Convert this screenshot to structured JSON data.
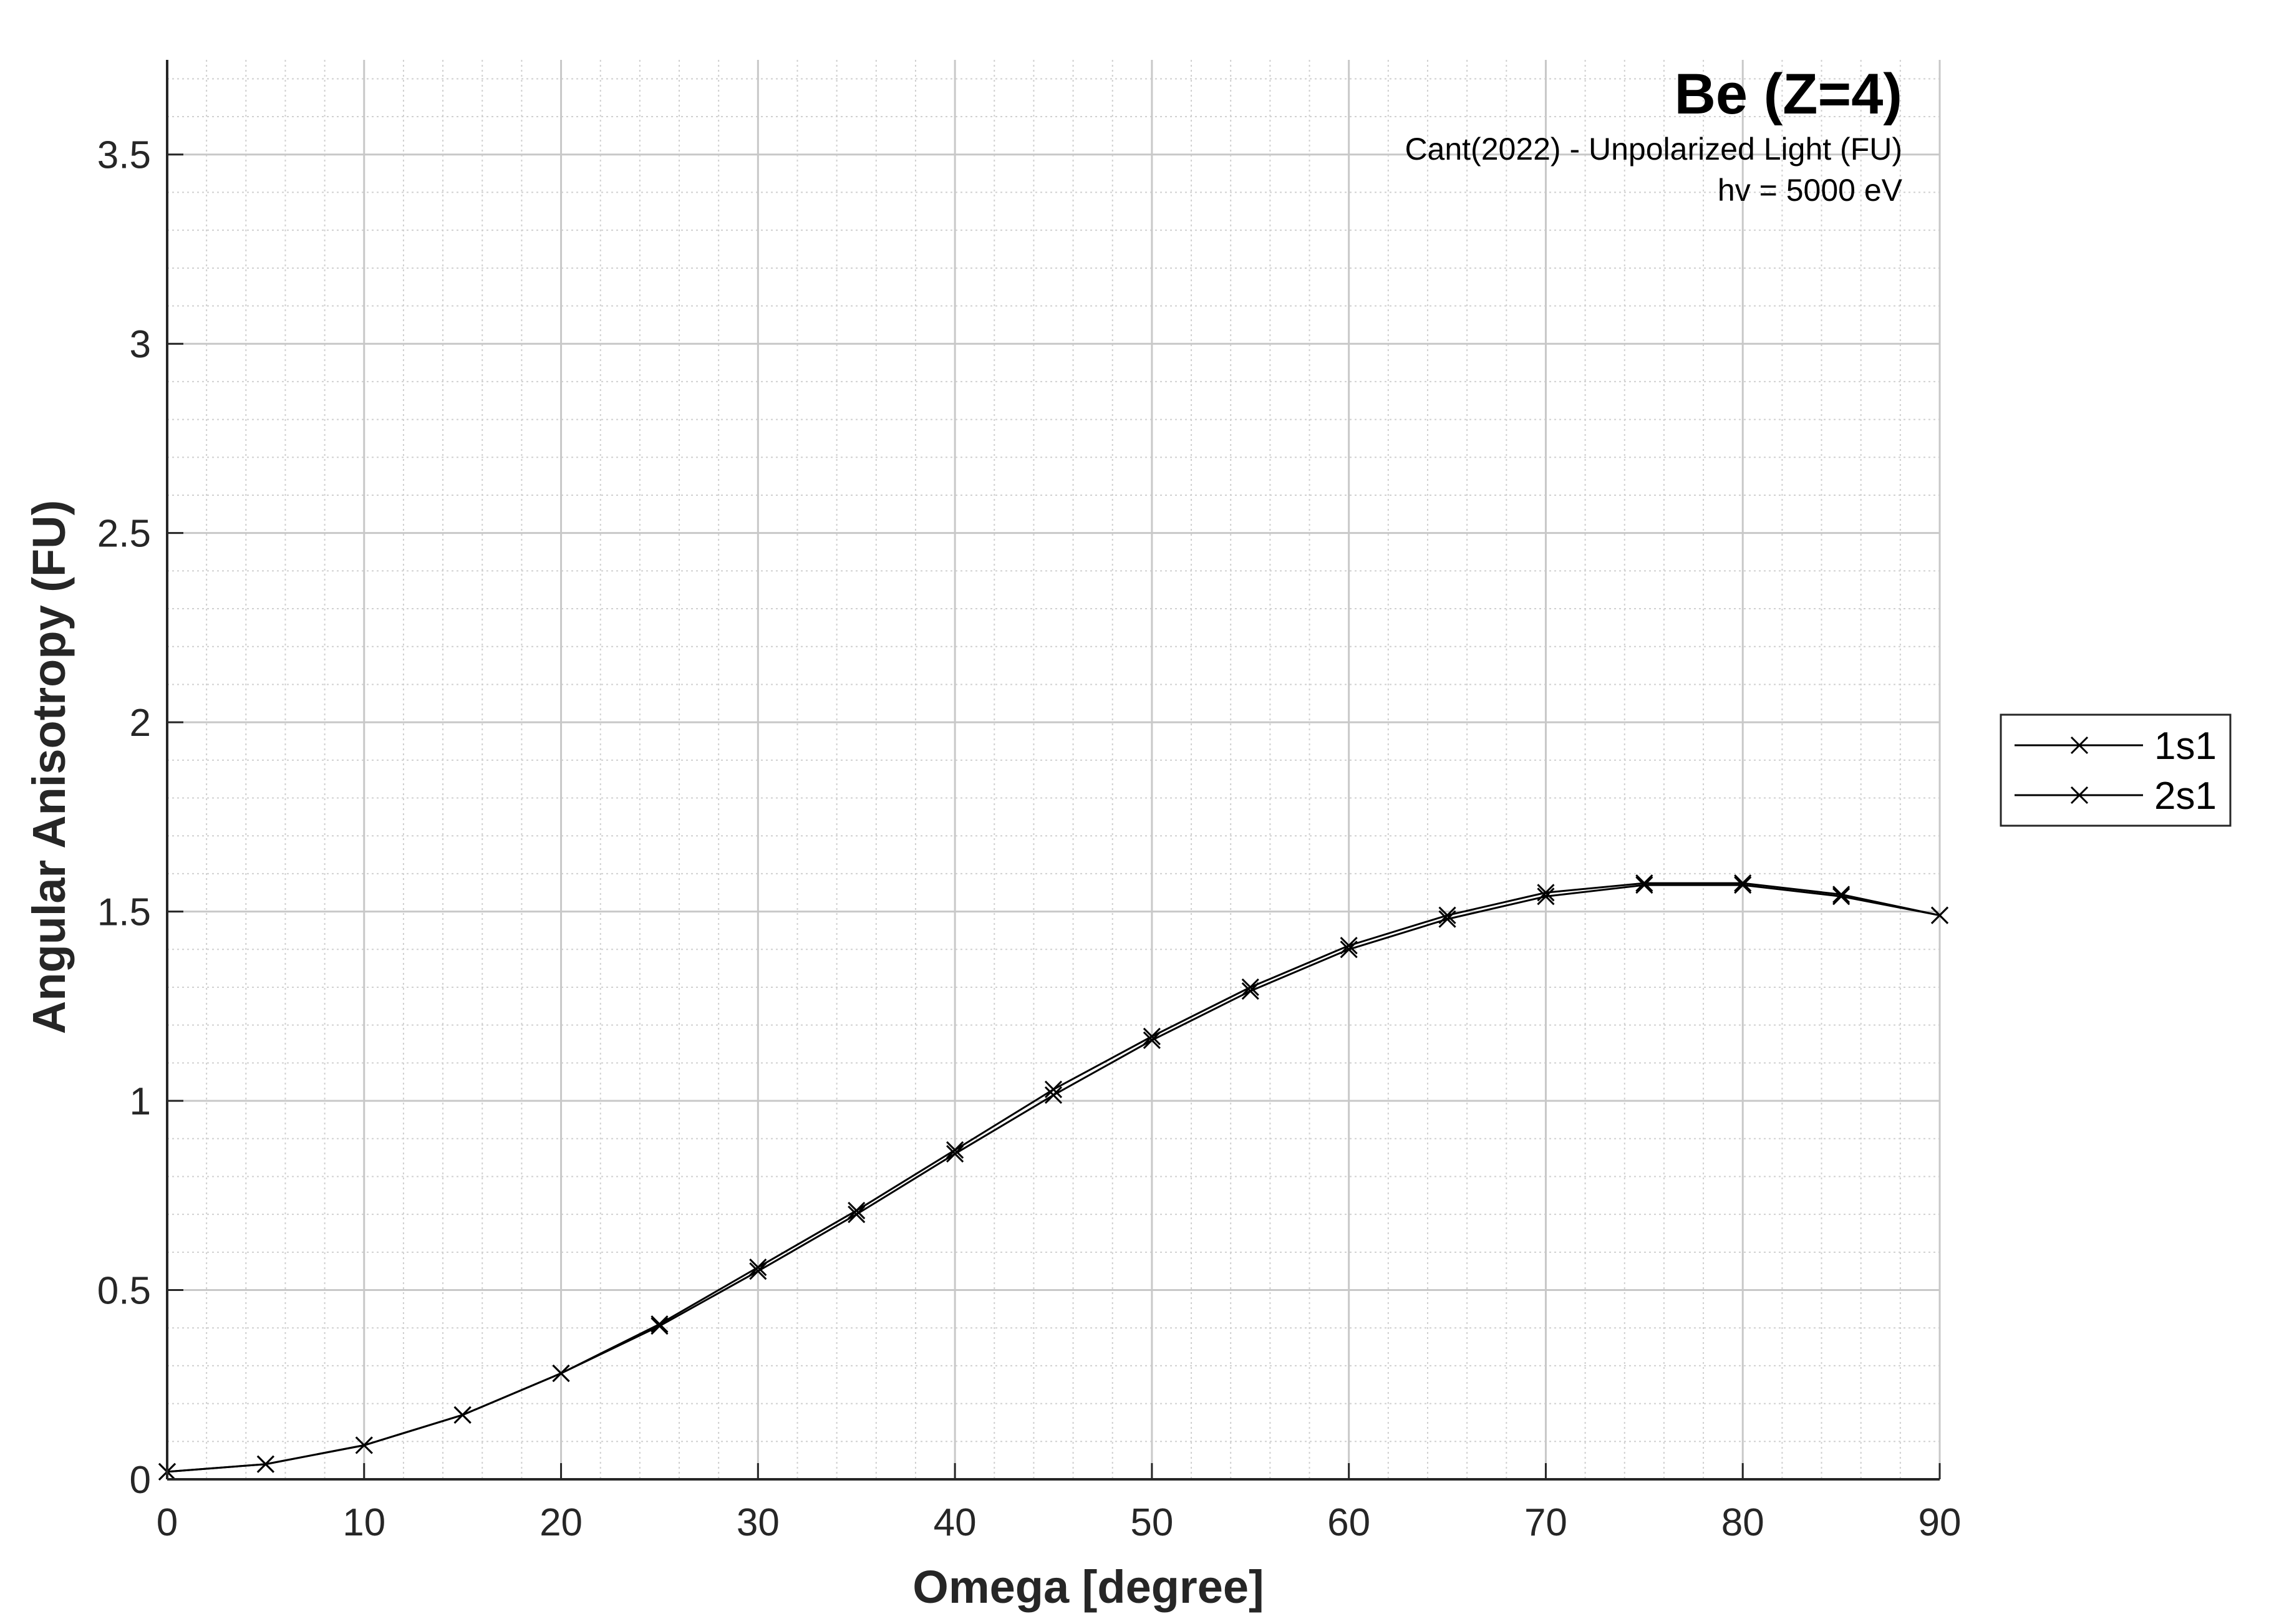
{
  "chart_data": {
    "type": "line",
    "title": "Be (Z=4)",
    "subtitle_lines": [
      "Cant(2022) - Unpolarized Light (FU)",
      "hv = 5000 eV"
    ],
    "xlabel": "Omega [degree]",
    "ylabel": "Angular Anisotropy (FU)",
    "xlim": [
      0,
      90
    ],
    "ylim": [
      0,
      3.75
    ],
    "xticks": [
      0,
      10,
      20,
      30,
      40,
      50,
      60,
      70,
      80,
      90
    ],
    "xtick_labels": [
      "0",
      "10",
      "20",
      "30",
      "40",
      "50",
      "60",
      "70",
      "80",
      "90"
    ],
    "yticks": [
      0,
      0.5,
      1,
      1.5,
      2,
      2.5,
      3,
      3.5
    ],
    "ytick_labels": [
      "0",
      "0.5",
      "1",
      "1.5",
      "2",
      "2.5",
      "3",
      "3.5"
    ],
    "grid": true,
    "minor_grid": true,
    "legend_position": "outside-right",
    "marker": "x",
    "series_color": "#000000",
    "x": [
      0,
      5,
      10,
      15,
      20,
      25,
      30,
      35,
      40,
      45,
      50,
      55,
      60,
      65,
      70,
      75,
      80,
      85,
      90
    ],
    "series": [
      {
        "name": "1s1",
        "values": [
          0.02,
          0.04,
          0.09,
          0.17,
          0.28,
          0.41,
          0.56,
          0.71,
          0.87,
          1.03,
          1.17,
          1.3,
          1.41,
          1.49,
          1.55,
          1.575,
          1.575,
          1.545,
          1.49
        ]
      },
      {
        "name": "2s1",
        "values": [
          0.02,
          0.04,
          0.09,
          0.17,
          0.28,
          0.405,
          0.55,
          0.7,
          0.86,
          1.015,
          1.16,
          1.29,
          1.4,
          1.48,
          1.54,
          1.57,
          1.57,
          1.54,
          1.49
        ]
      }
    ]
  }
}
